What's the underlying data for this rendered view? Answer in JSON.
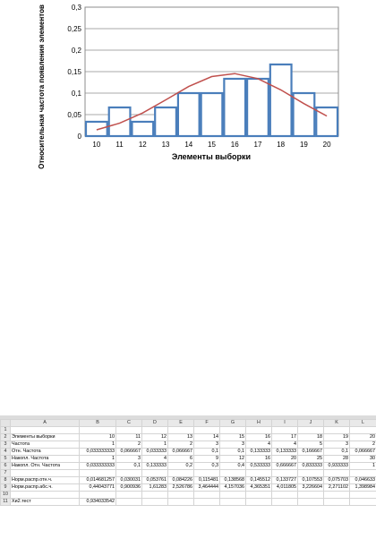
{
  "chart_data": {
    "type": "bar",
    "categories": [
      "10",
      "11",
      "12",
      "13",
      "14",
      "15",
      "16",
      "17",
      "18",
      "19",
      "20"
    ],
    "series": [
      {
        "type": "bar",
        "values": [
          0.033333,
          0.066667,
          0.033333,
          0.066667,
          0.1,
          0.1,
          0.133333,
          0.133333,
          0.166667,
          0.1,
          0.066667
        ]
      },
      {
        "type": "line",
        "values": [
          0.014681,
          0.030031,
          0.053761,
          0.084226,
          0.115481,
          0.138568,
          0.145512,
          0.133727,
          0.107553,
          0.075703,
          0.046633
        ]
      }
    ],
    "xlabel": "Элементы выборки",
    "ylabel": "Относительная частота появления элементов",
    "ylim": [
      0,
      0.3
    ],
    "y_ticks": [
      "0",
      "0,05",
      "0,1",
      "0,15",
      "0,2",
      "0,25",
      "0,3"
    ],
    "grid": "horizontal",
    "colors": {
      "bar_edge": "#4a7ebb",
      "line": "#c0504d",
      "grid": "#8c8c8c"
    }
  },
  "sheet": {
    "columns": [
      "A",
      "B",
      "C",
      "D",
      "E",
      "F",
      "G",
      "H",
      "I",
      "J",
      "K",
      "L"
    ],
    "rows": [
      [
        "1",
        "",
        "",
        "",
        "",
        "",
        "",
        "",
        "",
        "",
        "",
        "",
        ""
      ],
      [
        "2",
        "Элементы выборки",
        "10",
        "11",
        "12",
        "13",
        "14",
        "15",
        "16",
        "17",
        "18",
        "19",
        "20"
      ],
      [
        "3",
        "Частота",
        "1",
        "2",
        "1",
        "2",
        "3",
        "3",
        "4",
        "4",
        "5",
        "3",
        "2"
      ],
      [
        "4",
        "Отн. Частота",
        "0,033333333",
        "0,066667",
        "0,033333",
        "0,066667",
        "0,1",
        "0,1",
        "0,133333",
        "0,133333",
        "0,166667",
        "0,1",
        "0,066667"
      ],
      [
        "5",
        "Накопл. Частота",
        "1",
        "3",
        "4",
        "6",
        "9",
        "12",
        "16",
        "20",
        "25",
        "28",
        "30"
      ],
      [
        "6",
        "Накопл. Отн. Частота",
        "0,033333333",
        "0,1",
        "0,133333",
        "0,2",
        "0,3",
        "0,4",
        "0,533333",
        "0,666667",
        "0,833333",
        "0,933333",
        "1"
      ],
      [
        "7",
        "",
        "",
        "",
        "",
        "",
        "",
        "",
        "",
        "",
        "",
        "",
        ""
      ],
      [
        "8",
        "Норм.распр.отн.ч.",
        "0,014681257",
        "0,030031",
        "0,053761",
        "0,084226",
        "0,115481",
        "0,138568",
        "0,145512",
        "0,133727",
        "0,107553",
        "0,075703",
        "0,046633"
      ],
      [
        "9",
        "Норм.распр.абс.ч.",
        "0,44043771",
        "0,900936",
        "1,61283",
        "2,526786",
        "3,464444",
        "4,157036",
        "4,365351",
        "4,011805",
        "3,226604",
        "2,271102",
        "1,398984"
      ],
      [
        "10",
        "",
        "",
        "",
        "",
        "",
        "",
        "",
        "",
        "",
        "",
        "",
        ""
      ],
      [
        "11",
        "Хи2.тест",
        "0,934033542",
        "",
        "",
        "",
        "",
        "",
        "",
        "",
        "",
        "",
        ""
      ]
    ]
  }
}
